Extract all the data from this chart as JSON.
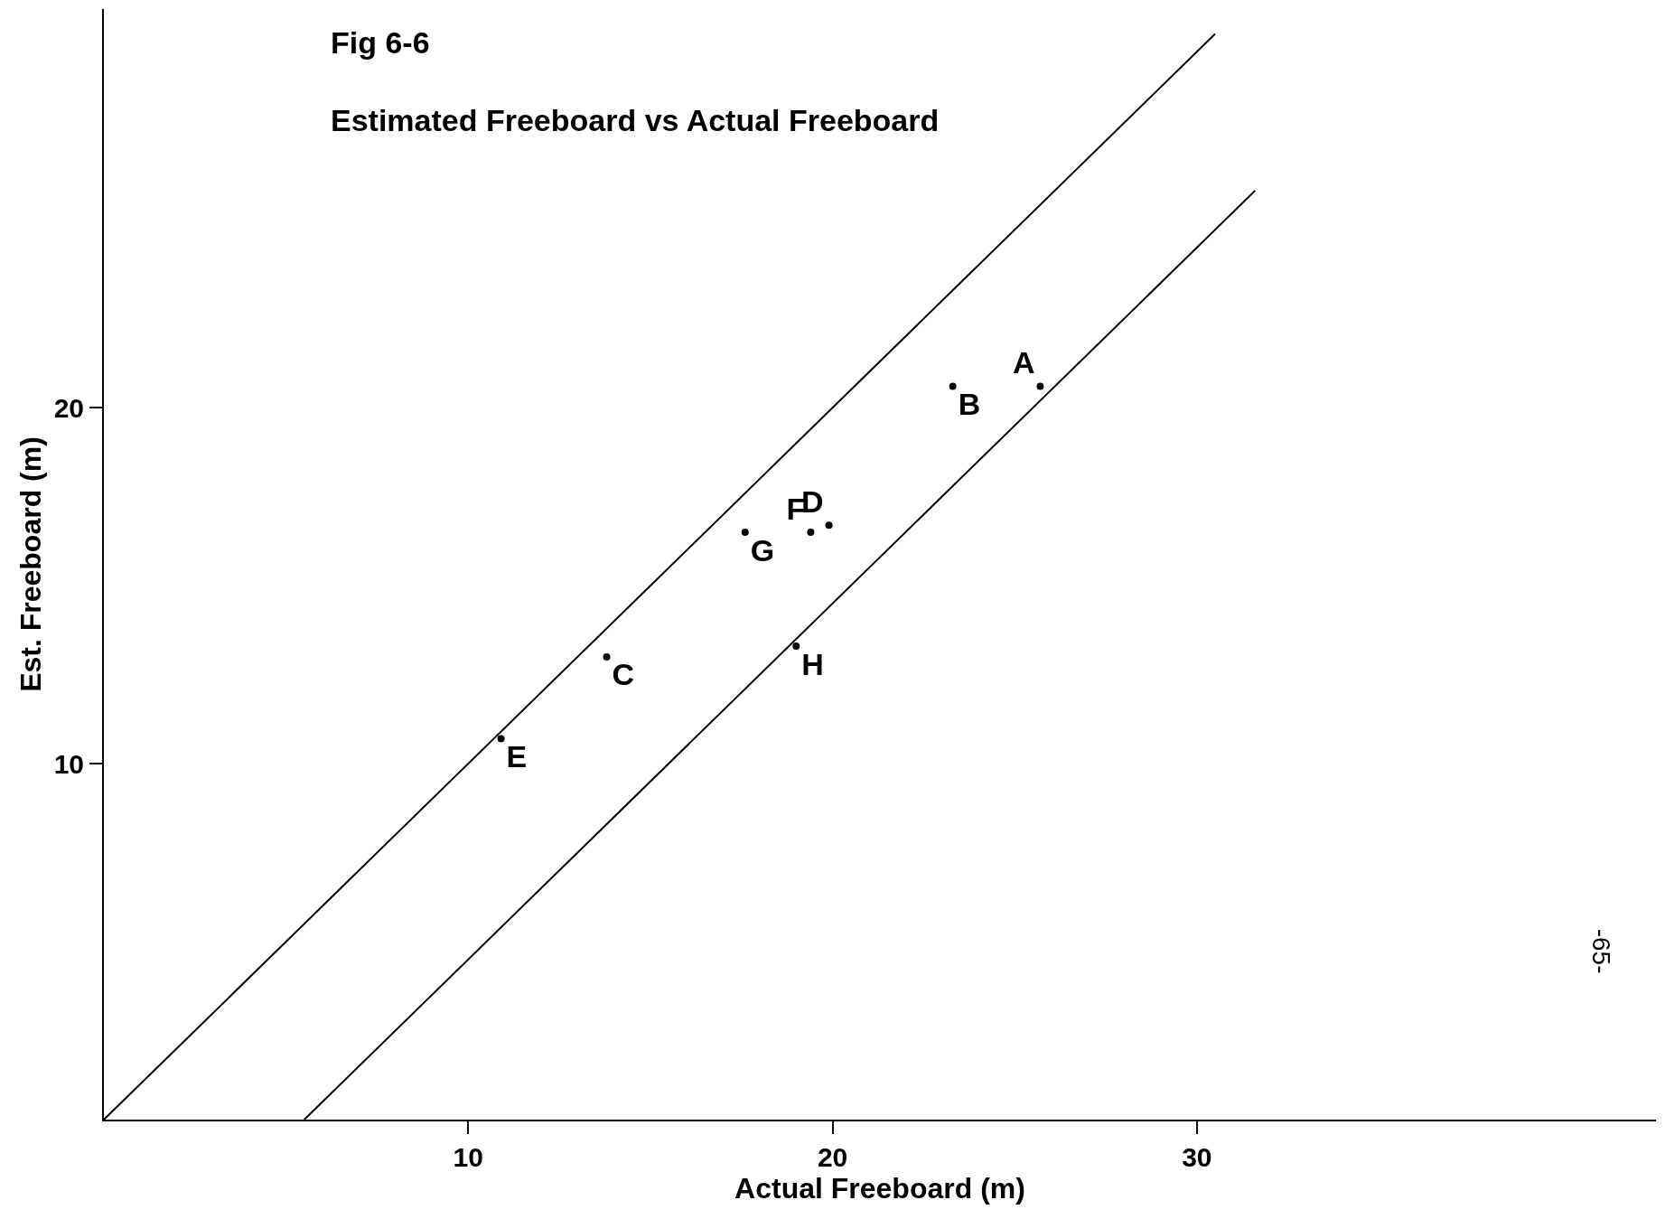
{
  "chart_data": {
    "type": "scatter",
    "title": "Fig 6-6",
    "subtitle": "Estimated Freeboard vs Actual Freeboard",
    "xlabel": "Actual Freeboard (m)",
    "ylabel": "Est. Freeboard (m)",
    "xlim": [
      0,
      42.6
    ],
    "ylim": [
      0,
      31.2
    ],
    "xticks": [
      10,
      20,
      30
    ],
    "yticks": [
      10,
      20
    ],
    "legend": false,
    "marker": "circle",
    "series": [
      {
        "name": "A",
        "color": "#000000",
        "x": [
          25.7
        ],
        "values": [
          20.6
        ]
      },
      {
        "name": "B",
        "color": "#000000",
        "x": [
          23.3
        ],
        "values": [
          20.6
        ]
      },
      {
        "name": "C",
        "color": "#000000",
        "x": [
          13.8
        ],
        "values": [
          13.0
        ]
      },
      {
        "name": "D",
        "color": "#000000",
        "x": [
          19.9
        ],
        "values": [
          16.7
        ]
      },
      {
        "name": "E",
        "color": "#000000",
        "x": [
          10.9
        ],
        "values": [
          10.7
        ]
      },
      {
        "name": "F",
        "color": "#000000",
        "x": [
          19.4
        ],
        "values": [
          16.5
        ]
      },
      {
        "name": "G",
        "color": "#000000",
        "x": [
          17.6
        ],
        "values": [
          16.5
        ]
      },
      {
        "name": "H",
        "color": "#000000",
        "x": [
          19.0
        ],
        "values": [
          13.3
        ]
      },
      {
        "type": "line",
        "color": "#000000",
        "x": [
          0,
          30.5
        ],
        "values": [
          0,
          30.5
        ],
        "line_style": "solid",
        "marker": "none"
      },
      {
        "type": "line",
        "color": "#000000",
        "x": [
          5.5,
          31.6
        ],
        "values": [
          0,
          26.1
        ],
        "line_style": "solid",
        "marker": "none"
      }
    ],
    "annotations": [
      "-65-"
    ]
  }
}
